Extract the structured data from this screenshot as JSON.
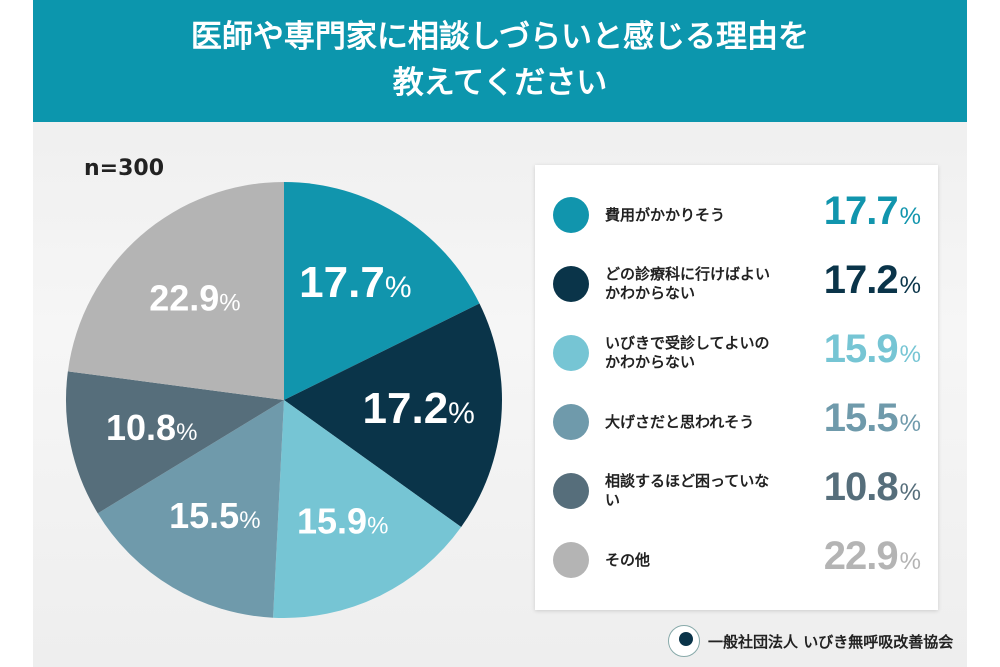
{
  "title_lines": [
    "医師や専門家に相談しづらいと感じる理由を",
    "教えてください"
  ],
  "sample": "n=300",
  "footer": "一般社団法人 いびき無呼吸改善協会",
  "chart_data": {
    "type": "pie",
    "title": "医師や専門家に相談しづらいと感じる理由を教えてください",
    "unit": "%",
    "start": "12 o'clock",
    "direction": "clockwise",
    "legend_position": "right",
    "slices": [
      {
        "label": "費用がかかりそう",
        "value": 17.7,
        "display": "17.7",
        "color": "#1195ad"
      },
      {
        "label": "どの診療科に行けばよいかわからない",
        "value": 17.2,
        "display": "17.2",
        "color": "#0a3449"
      },
      {
        "label": "いびきで受診してよいのかわからない",
        "value": 15.9,
        "display": "15.9",
        "color": "#76c5d4"
      },
      {
        "label": "大げさだと思われそう",
        "value": 15.5,
        "display": "15.5",
        "color": "#6f9aab"
      },
      {
        "label": "相談するほど困っていない",
        "value": 10.8,
        "display": "10.8",
        "color": "#566e7b"
      },
      {
        "label": "その他",
        "value": 22.9,
        "display": "22.9",
        "color": "#b4b4b4"
      }
    ]
  }
}
